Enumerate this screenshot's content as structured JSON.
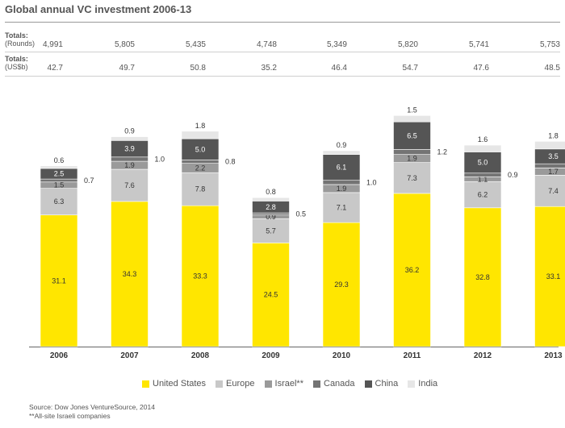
{
  "title": "Global annual VC investment 2006-13",
  "totals": {
    "rounds_label_line1": "Totals:",
    "rounds_label_line2": "(Rounds)",
    "rounds_values": [
      "4,991",
      "5,805",
      "5,435",
      "4,748",
      "5,349",
      "5,820",
      "5,741",
      "5,753"
    ],
    "usd_label_line1": "Totals:",
    "usd_label_line2": "(US$b)",
    "usd_values": [
      "42.7",
      "49.7",
      "50.8",
      "35.2",
      "46.4",
      "54.7",
      "47.6",
      "48.5"
    ]
  },
  "legend": {
    "items": [
      "United States",
      "Europe",
      "Israel**",
      "Canada",
      "China",
      "India"
    ]
  },
  "source": {
    "line1": "Source: Dow Jones VentureSource, 2014",
    "line2": "**All-site Israeli companies"
  },
  "colors": {
    "united_states": "#ffe600",
    "europe": "#c8c8c8",
    "israel": "#9a9a9a",
    "canada": "#747474",
    "china": "#555555",
    "india": "#e6e6e6"
  },
  "chart_data": {
    "type": "bar",
    "stacked": true,
    "title": "Global annual VC investment 2006-13",
    "categories": [
      "2006",
      "2007",
      "2008",
      "2009",
      "2010",
      "2011",
      "2012",
      "2013"
    ],
    "ylim": [
      0,
      58
    ],
    "series": [
      {
        "name": "United States",
        "values": [
          31.1,
          34.3,
          33.3,
          24.5,
          29.3,
          36.2,
          32.8,
          33.1
        ]
      },
      {
        "name": "Europe",
        "values": [
          6.3,
          7.6,
          7.8,
          5.7,
          7.1,
          7.3,
          6.2,
          7.4
        ]
      },
      {
        "name": "Israel**",
        "values": [
          1.5,
          1.9,
          2.2,
          0.9,
          1.9,
          1.9,
          1.1,
          1.7
        ]
      },
      {
        "name": "Canada",
        "values": [
          0.7,
          1.0,
          0.8,
          0.5,
          1.0,
          1.2,
          0.9,
          1.0
        ]
      },
      {
        "name": "China",
        "values": [
          2.5,
          3.9,
          5.0,
          2.8,
          6.1,
          6.5,
          5.0,
          3.5
        ]
      },
      {
        "name": "India",
        "values": [
          0.6,
          0.9,
          1.8,
          0.8,
          0.9,
          1.5,
          1.6,
          1.8
        ]
      }
    ],
    "value_labels": {
      "United States": [
        "31.1",
        "34.3",
        "33.3",
        "24.5",
        "29.3",
        "36.2",
        "32.8",
        "33.1"
      ],
      "Europe": [
        "6.3",
        "7.6",
        "7.8",
        "5.7",
        "7.1",
        "7.3",
        "6.2",
        "7.4"
      ],
      "Israel**": [
        "1.5",
        "1.9",
        "2.2",
        "0.9",
        "1.9",
        "1.9",
        "1.1",
        "1.7"
      ],
      "Canada": [
        "0.7",
        "1.0",
        "0.8",
        "0.5",
        "1.0",
        "1.2",
        "0.9",
        "1.0"
      ],
      "China": [
        "2.5",
        "3.9",
        "5.0",
        "2.8",
        "6.1",
        "6.5",
        "5.0",
        "3.5"
      ],
      "India": [
        "0.6",
        "0.9",
        "1.8",
        "0.8",
        "0.9",
        "1.5",
        "1.6",
        "1.8"
      ]
    },
    "legend_position": "bottom",
    "grid": false
  }
}
